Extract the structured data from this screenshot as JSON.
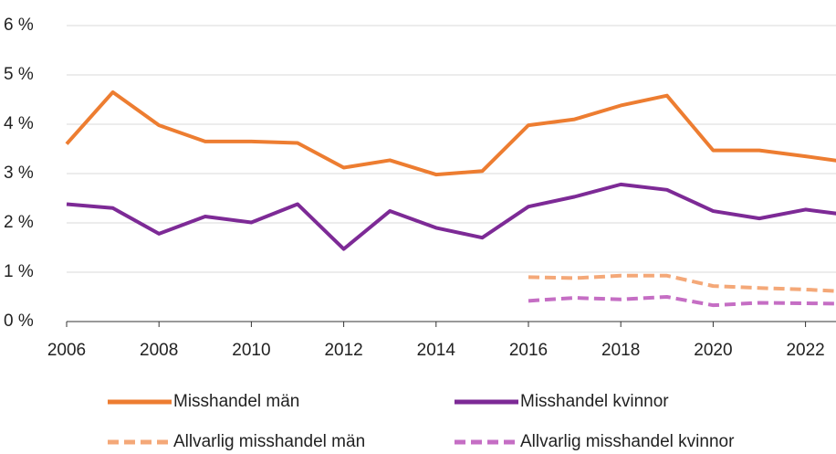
{
  "chart_data": {
    "type": "line",
    "x": [
      2006,
      2007,
      2008,
      2009,
      2010,
      2011,
      2012,
      2013,
      2014,
      2015,
      2016,
      2017,
      2018,
      2019,
      2020,
      2021,
      2022,
      2023
    ],
    "series": [
      {
        "name": "Misshandel män",
        "color": "#ed7d31",
        "dash": false,
        "values": [
          3.6,
          4.65,
          3.98,
          3.65,
          3.65,
          3.62,
          3.12,
          3.27,
          2.98,
          3.05,
          3.98,
          4.1,
          4.38,
          4.58,
          3.47,
          3.47,
          3.35,
          3.22
        ]
      },
      {
        "name": "Misshandel kvinnor",
        "color": "#7d2a96",
        "dash": false,
        "values": [
          2.38,
          2.3,
          1.78,
          2.13,
          2.01,
          2.38,
          1.47,
          2.24,
          1.9,
          1.7,
          2.33,
          2.53,
          2.78,
          2.67,
          2.24,
          2.09,
          2.27,
          2.15
        ]
      },
      {
        "name": "Allvarlig misshandel män",
        "color": "#f4a878",
        "dash": true,
        "values": [
          null,
          null,
          null,
          null,
          null,
          null,
          null,
          null,
          null,
          null,
          0.9,
          0.88,
          0.93,
          0.93,
          0.72,
          0.68,
          0.65,
          0.6
        ]
      },
      {
        "name": "Allvarlig misshandel kvinnor",
        "color": "#c56ec4",
        "dash": true,
        "values": [
          null,
          null,
          null,
          null,
          null,
          null,
          null,
          null,
          null,
          null,
          0.42,
          0.48,
          0.45,
          0.5,
          0.33,
          0.38,
          0.37,
          0.36
        ]
      }
    ],
    "xlim": [
      2006,
      2023
    ],
    "xticks": [
      2006,
      2008,
      2010,
      2012,
      2014,
      2016,
      2018,
      2020,
      2022
    ],
    "ylim": [
      0,
      6
    ],
    "yticks": [
      {
        "value": 0,
        "label": "0 %"
      },
      {
        "value": 1,
        "label": "1 %"
      },
      {
        "value": 2,
        "label": "2 %"
      },
      {
        "value": 3,
        "label": "3 %"
      },
      {
        "value": 4,
        "label": "4 %"
      },
      {
        "value": 5,
        "label": "5 %"
      },
      {
        "value": 6,
        "label": "6 %"
      }
    ],
    "grid": true
  }
}
